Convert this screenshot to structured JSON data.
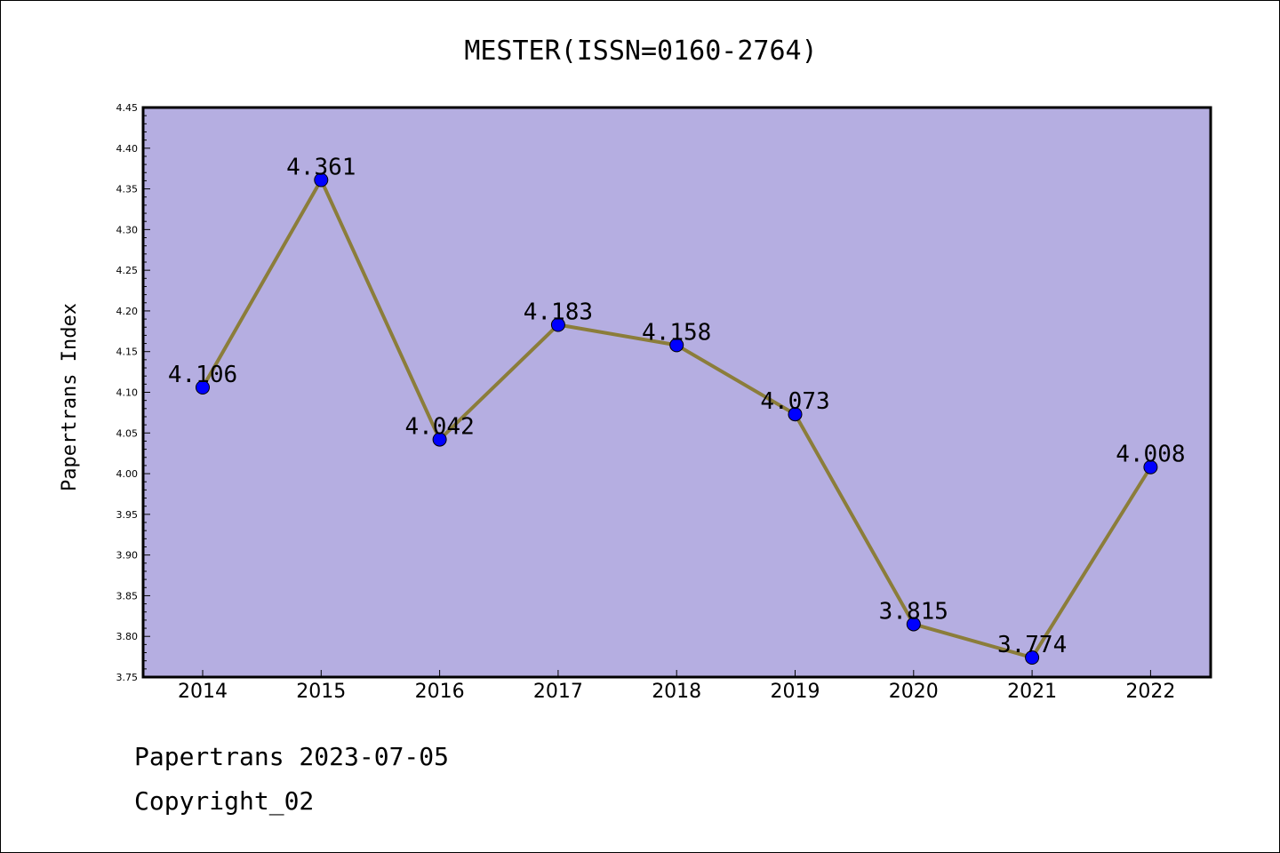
{
  "chart_data": {
    "type": "line",
    "title": "MESTER(ISSN=0160-2764)",
    "xlabel": "",
    "ylabel": "Papertrans Index",
    "categories": [
      "2014",
      "2015",
      "2016",
      "2017",
      "2018",
      "2019",
      "2020",
      "2021",
      "2022"
    ],
    "values": [
      4.106,
      4.361,
      4.042,
      4.183,
      4.158,
      4.073,
      3.815,
      3.774,
      4.008
    ],
    "data_labels": [
      "4.106",
      "4.361",
      "4.042",
      "4.183",
      "4.158",
      "4.073",
      "3.815",
      "3.774",
      "4.008"
    ],
    "ylim": [
      3.75,
      4.45
    ],
    "yticks": [
      "3.75",
      "3.80",
      "3.85",
      "3.90",
      "3.95",
      "4.00",
      "4.05",
      "4.10",
      "4.15",
      "4.20",
      "4.25",
      "4.30",
      "4.35",
      "4.40",
      "4.45"
    ],
    "grid": false,
    "legend": "none",
    "colors": {
      "plot_background": "#b5aee1",
      "line": "#8b7d3a",
      "marker": "#0000ff",
      "frame": "#000000"
    }
  },
  "footer": {
    "line1": "Papertrans 2023-07-05",
    "line2": "Copyright_02"
  }
}
